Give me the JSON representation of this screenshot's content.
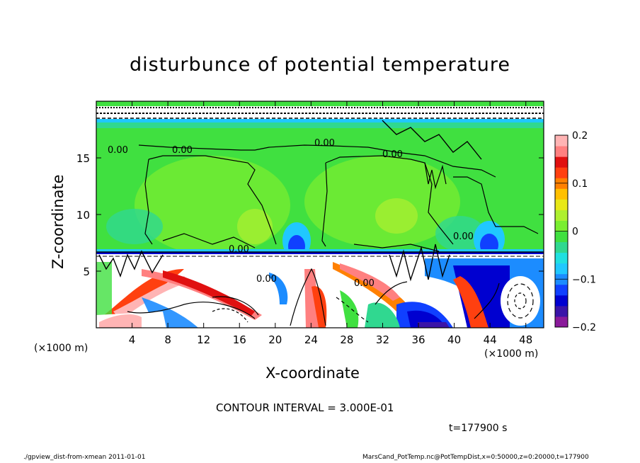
{
  "chart_data": {
    "type": "heatmap",
    "title": "disturbunce of potential temperature",
    "xlabel": "X-coordinate",
    "ylabel": "Z-coordinate",
    "x_unit_label_left": "(×1000 m)",
    "x_unit_label_right": "(×1000 m)",
    "xlim": [
      0,
      50
    ],
    "ylim": [
      0,
      20
    ],
    "x_ticks": [
      4,
      8,
      12,
      16,
      20,
      24,
      28,
      32,
      36,
      40,
      44,
      48
    ],
    "y_ticks": [
      5,
      10,
      15
    ],
    "colorbar": {
      "range": [
        -0.2,
        0.2
      ],
      "tick_labels": [
        "0.2",
        "0.1",
        "0",
        "−0.1",
        "−0.2"
      ],
      "tick_values": [
        0.2,
        0.1,
        0,
        -0.1,
        -0.2
      ],
      "colors": [
        "#8a1a9a",
        "#3a14a8",
        "#0000d0",
        "#1040ff",
        "#1c8cff",
        "#20c8ff",
        "#20e0e0",
        "#30d890",
        "#40e040",
        "#7aee30",
        "#aef030",
        "#e8e818",
        "#ffc000",
        "#ff8000",
        "#ff4010",
        "#e01010",
        "#ff8080",
        "#ffb4b4"
      ]
    },
    "contour_labels": [
      "0.00",
      "0.00",
      "0.00",
      "0.00",
      "0.00",
      "0.00",
      "0.00",
      "0.00"
    ],
    "grid": false
  },
  "annotations": {
    "contour_interval": "CONTOUR INTERVAL = 3.000E-01",
    "time": "t=177900 s",
    "footer_left": "./gpview_dist-from-xmean  2011-01-01",
    "footer_right": "MarsCand_PotTemp.nc@PotTempDist,x=0:50000,z=0:20000,t=177900"
  }
}
